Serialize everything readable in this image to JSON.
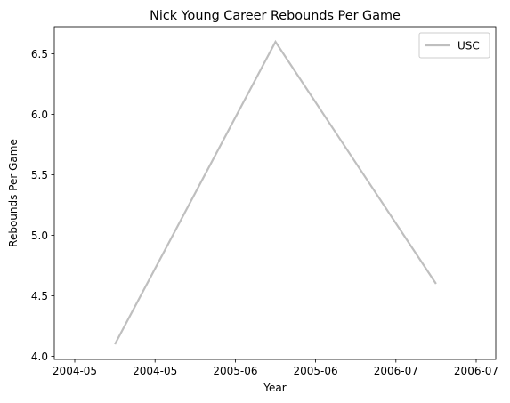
{
  "chart_data": {
    "type": "line",
    "title": "Nick Young  Career Rebounds Per Game",
    "xlabel": "Year",
    "ylabel": "Rebounds Per Game",
    "x_tick_labels": [
      "2004-05",
      "2004-05",
      "2005-06",
      "2005-06",
      "2006-07",
      "2006-07"
    ],
    "yticks": [
      4.0,
      4.5,
      5.0,
      5.5,
      6.0,
      6.5
    ],
    "ylim": [
      3.975,
      6.725
    ],
    "grid": false,
    "legend_position": "top-right",
    "series": [
      {
        "name": "USC",
        "color": "#bfbfbf",
        "points": [
          {
            "x": "2004-05",
            "y": 4.1
          },
          {
            "x": "2005-06",
            "y": 6.6
          },
          {
            "x": "2006-07",
            "y": 4.6
          }
        ]
      }
    ]
  }
}
